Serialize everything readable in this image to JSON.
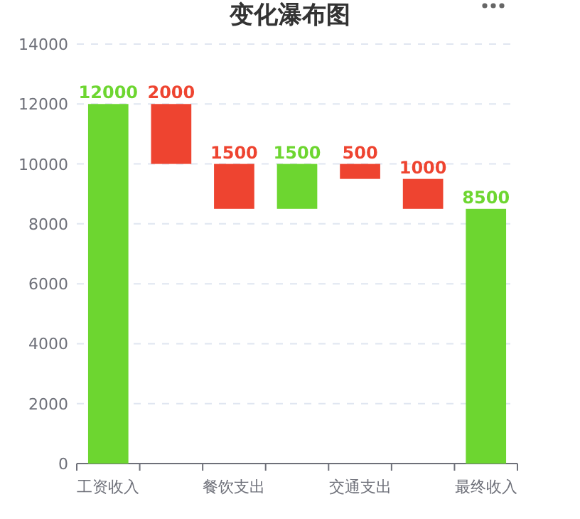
{
  "chart_data": {
    "type": "bar",
    "title": "变化瀑布图",
    "categories": [
      "工资收入",
      null,
      "餐饮支出",
      null,
      "交通支出",
      null,
      "最终收入"
    ],
    "values": [
      12000,
      2000,
      1500,
      1500,
      500,
      1000,
      8500
    ],
    "base": [
      0,
      10000,
      8500,
      8500,
      9500,
      8500,
      0
    ],
    "colors": [
      "#6dd630",
      "#ee4430",
      "#ee4430",
      "#6dd630",
      "#ee4430",
      "#ee4430",
      "#6dd630"
    ],
    "data_labels": true,
    "ylim": [
      0,
      14000
    ],
    "yticks": [
      0,
      2000,
      4000,
      6000,
      8000,
      10000,
      12000,
      14000
    ],
    "grid": "y"
  }
}
